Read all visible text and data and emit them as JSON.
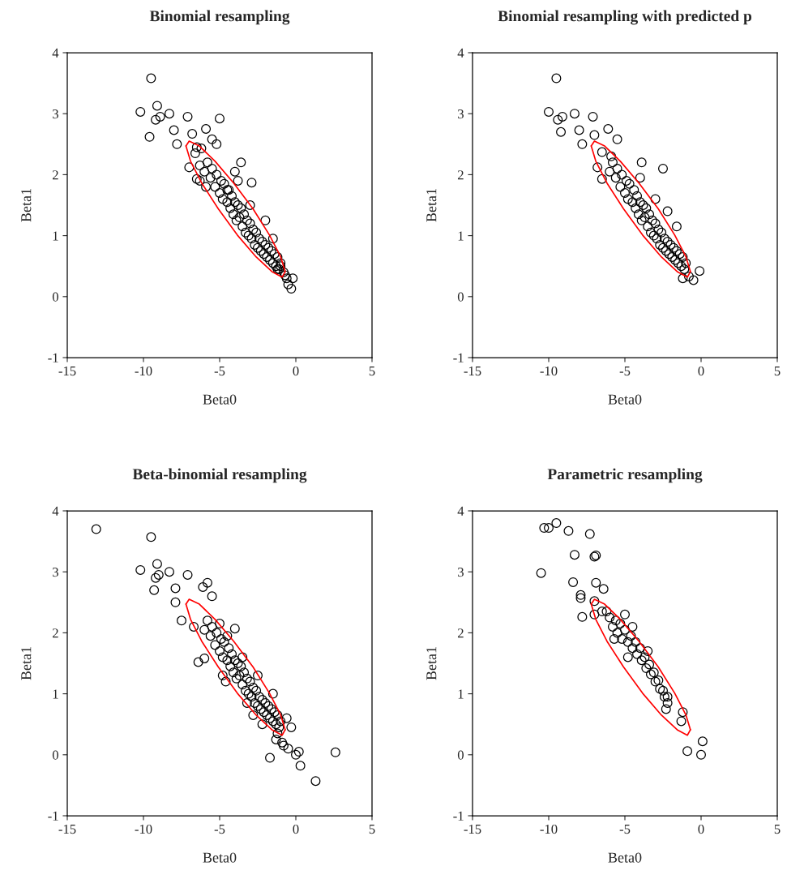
{
  "chart_data": [
    {
      "type": "scatter",
      "title": "Binomial resampling",
      "xlabel": "Beta0",
      "ylabel": "Beta1",
      "xlim": [
        -15,
        5
      ],
      "xticks": [
        -15,
        -10,
        -5,
        0,
        5
      ],
      "ylim": [
        -1,
        4
      ],
      "yticks": [
        -1,
        0,
        1,
        2,
        3,
        4
      ],
      "marker": "circle",
      "series": [
        {
          "color": "#000000",
          "x": [
            -9.5,
            -10.2,
            -9.1,
            -9.6,
            -9.2,
            -8.9,
            -8.3,
            -7.1,
            -5.0,
            -6.8,
            -7.8,
            -5.9,
            -8.0,
            -6.2,
            -7.0,
            -6.5,
            -5.5,
            -5.2,
            -3.6,
            -2.9,
            -4.5,
            -6.0,
            -5.8,
            -5.6,
            -5.5,
            -5.3,
            -5.2,
            -5.0,
            -4.9,
            -4.8,
            -4.7,
            -4.5,
            -4.4,
            -4.3,
            -4.2,
            -4.1,
            -4.0,
            -3.9,
            -3.8,
            -3.7,
            -3.6,
            -3.5,
            -3.4,
            -3.3,
            -3.2,
            -3.1,
            -3.0,
            -2.9,
            -2.8,
            -2.7,
            -2.6,
            -2.5,
            -2.4,
            -2.3,
            -2.2,
            -2.1,
            -2.0,
            -1.9,
            -1.8,
            -1.7,
            -1.6,
            -1.5,
            -1.4,
            -1.3,
            -1.2,
            -1.1,
            -1.0,
            -0.8,
            -0.6,
            -0.5,
            -0.3,
            -0.2,
            -6.6,
            -6.3,
            -5.9,
            -4.0,
            -3.0,
            -2.0,
            -1.5,
            -3.8,
            -6.5,
            -6.3,
            -0.7,
            -1.0,
            -1.2
          ],
          "values": [
            3.58,
            3.03,
            3.13,
            2.62,
            2.9,
            2.95,
            3.0,
            2.95,
            2.92,
            2.67,
            2.5,
            2.75,
            2.73,
            2.43,
            2.12,
            1.93,
            2.58,
            2.5,
            2.2,
            1.87,
            1.75,
            2.05,
            2.2,
            1.95,
            2.1,
            1.8,
            2.0,
            1.7,
            1.9,
            1.6,
            1.85,
            1.55,
            1.75,
            1.45,
            1.65,
            1.35,
            1.55,
            1.25,
            1.5,
            1.3,
            1.45,
            1.15,
            1.35,
            1.05,
            1.25,
            1.0,
            1.2,
            0.95,
            1.1,
            0.85,
            1.05,
            0.8,
            0.95,
            0.75,
            0.9,
            0.7,
            0.85,
            0.65,
            0.8,
            0.6,
            0.75,
            0.55,
            0.7,
            0.5,
            0.65,
            0.45,
            0.55,
            0.4,
            0.3,
            0.2,
            0.13,
            0.3,
            2.35,
            2.15,
            1.8,
            2.05,
            1.5,
            1.25,
            0.95,
            1.9,
            2.45,
            1.9,
            0.35,
            0.5,
            0.45
          ]
        },
        {
          "type": "line",
          "marker": "none",
          "color": "#ff0000",
          "x": [
            -7.21,
            -7.0,
            -6.33,
            -5.3,
            -4.07,
            -2.81,
            -1.73,
            -0.99,
            -0.7
          ],
          "values": [
            2.47,
            2.55,
            2.47,
            2.22,
            1.86,
            1.44,
            1.01,
            0.65,
            0.41
          ]
        },
        {
          "type": "line",
          "marker": "none",
          "color": "#ff0000",
          "x": [
            -7.21,
            -6.91,
            -6.17,
            -5.09,
            -3.84,
            -2.6,
            -1.57,
            -0.9,
            -0.7
          ],
          "values": [
            2.47,
            2.22,
            1.86,
            1.44,
            1.01,
            0.65,
            0.41,
            0.32,
            0.41
          ]
        }
      ]
    },
    {
      "type": "scatter",
      "title": "Binomial resampling with predicted p",
      "xlabel": "Beta0",
      "ylabel": "Beta1",
      "xlim": [
        -15,
        5
      ],
      "xticks": [
        -15,
        -10,
        -5,
        0,
        5
      ],
      "ylim": [
        -1,
        4
      ],
      "yticks": [
        -1,
        0,
        1,
        2,
        3,
        4
      ],
      "marker": "circle",
      "series": [
        {
          "color": "#000000",
          "x": [
            -9.5,
            -10.0,
            -9.4,
            -9.1,
            -8.3,
            -7.1,
            -9.2,
            -8.0,
            -7.8,
            -6.1,
            -5.5,
            -7.0,
            -6.5,
            -3.9,
            -2.5,
            -6.8,
            -6.5,
            -0.1,
            -0.5,
            -0.8,
            -1.2,
            -6.0,
            -5.8,
            -5.6,
            -5.5,
            -5.3,
            -5.2,
            -5.0,
            -4.9,
            -4.8,
            -4.7,
            -4.5,
            -4.4,
            -4.3,
            -4.2,
            -4.1,
            -4.0,
            -3.9,
            -3.8,
            -3.7,
            -3.6,
            -3.5,
            -3.4,
            -3.3,
            -3.2,
            -3.1,
            -3.0,
            -2.9,
            -2.8,
            -2.7,
            -2.6,
            -2.5,
            -2.4,
            -2.3,
            -2.2,
            -2.1,
            -2.0,
            -1.9,
            -1.8,
            -1.7,
            -1.6,
            -1.5,
            -1.4,
            -1.3,
            -1.2,
            -1.1,
            -1.0,
            -4.0,
            -3.0,
            -2.2,
            -1.6,
            -5.9
          ],
          "values": [
            3.58,
            3.03,
            2.9,
            2.95,
            3.0,
            2.95,
            2.7,
            2.73,
            2.5,
            2.75,
            2.58,
            2.65,
            2.37,
            2.2,
            2.1,
            2.12,
            1.93,
            0.42,
            0.27,
            0.33,
            0.3,
            2.05,
            2.2,
            1.95,
            2.1,
            1.8,
            2.0,
            1.7,
            1.9,
            1.6,
            1.85,
            1.55,
            1.75,
            1.45,
            1.65,
            1.35,
            1.55,
            1.25,
            1.5,
            1.3,
            1.45,
            1.15,
            1.35,
            1.05,
            1.25,
            1.0,
            1.2,
            0.95,
            1.1,
            0.85,
            1.05,
            0.8,
            0.95,
            0.75,
            0.9,
            0.7,
            0.85,
            0.65,
            0.8,
            0.6,
            0.75,
            0.55,
            0.7,
            0.5,
            0.65,
            0.45,
            0.55,
            1.95,
            1.6,
            1.4,
            1.15,
            2.3
          ]
        },
        {
          "type": "line",
          "marker": "none",
          "color": "#ff0000",
          "x": [
            -7.21,
            -7.0,
            -6.33,
            -5.3,
            -4.07,
            -2.81,
            -1.73,
            -0.99,
            -0.7
          ],
          "values": [
            2.47,
            2.55,
            2.47,
            2.22,
            1.86,
            1.44,
            1.01,
            0.65,
            0.41
          ]
        },
        {
          "type": "line",
          "marker": "none",
          "color": "#ff0000",
          "x": [
            -7.21,
            -6.91,
            -6.17,
            -5.09,
            -3.84,
            -2.6,
            -1.57,
            -0.9,
            -0.7
          ],
          "values": [
            2.47,
            2.22,
            1.86,
            1.44,
            1.01,
            0.65,
            0.41,
            0.32,
            0.41
          ]
        }
      ]
    },
    {
      "type": "scatter",
      "title": "Beta-binomial resampling",
      "xlabel": "Beta0",
      "ylabel": "Beta1",
      "xlim": [
        -15,
        5
      ],
      "xticks": [
        -15,
        -10,
        -5,
        0,
        5
      ],
      "ylim": [
        -1,
        4
      ],
      "yticks": [
        -1,
        0,
        1,
        2,
        3,
        4
      ],
      "marker": "circle",
      "series": [
        {
          "color": "#000000",
          "x": [
            -13.1,
            -9.5,
            -10.2,
            -9.1,
            -9.2,
            -9.0,
            -8.3,
            -7.1,
            -9.3,
            -7.9,
            -7.9,
            -5.8,
            -6.1,
            -7.5,
            -5.5,
            -6.7,
            -6.4,
            -6.0,
            -4.0,
            1.3,
            2.6,
            0.3,
            -1.7,
            0.0,
            -0.5,
            0.2,
            -0.8,
            -1.3,
            -6.0,
            -5.8,
            -5.6,
            -5.5,
            -5.3,
            -5.2,
            -5.0,
            -4.9,
            -4.8,
            -4.7,
            -4.5,
            -4.4,
            -4.3,
            -4.2,
            -4.1,
            -4.0,
            -3.9,
            -3.8,
            -3.7,
            -3.6,
            -3.5,
            -3.4,
            -3.3,
            -3.2,
            -3.1,
            -3.0,
            -2.9,
            -2.8,
            -2.7,
            -2.6,
            -2.5,
            -2.4,
            -2.3,
            -2.2,
            -2.1,
            -2.0,
            -1.9,
            -1.8,
            -1.7,
            -1.6,
            -1.5,
            -1.4,
            -1.3,
            -1.2,
            -1.1,
            -1.0,
            -5.0,
            -4.5,
            -3.5,
            -2.5,
            -1.5,
            -4.8,
            -3.2,
            -2.2,
            -0.9,
            -0.3,
            -4.6,
            -2.8,
            -1.2,
            -0.6
          ],
          "values": [
            3.7,
            3.57,
            3.03,
            3.13,
            2.9,
            2.95,
            3.0,
            2.95,
            2.7,
            2.73,
            2.5,
            2.82,
            2.75,
            2.2,
            2.6,
            2.1,
            1.52,
            1.58,
            2.07,
            -0.43,
            0.04,
            -0.18,
            -0.05,
            0.0,
            0.1,
            0.05,
            0.15,
            0.25,
            2.05,
            2.2,
            1.95,
            2.1,
            1.8,
            2.0,
            1.7,
            1.9,
            1.6,
            1.85,
            1.55,
            1.75,
            1.45,
            1.65,
            1.35,
            1.55,
            1.25,
            1.5,
            1.3,
            1.45,
            1.15,
            1.35,
            1.05,
            1.25,
            1.0,
            1.2,
            0.95,
            1.1,
            0.85,
            1.05,
            0.8,
            0.95,
            0.75,
            0.9,
            0.7,
            0.85,
            0.65,
            0.8,
            0.6,
            0.75,
            0.55,
            0.7,
            0.5,
            0.65,
            0.45,
            0.55,
            2.15,
            1.95,
            1.6,
            1.3,
            1.0,
            1.3,
            0.85,
            0.5,
            0.2,
            0.45,
            1.2,
            0.65,
            0.35,
            0.6
          ]
        },
        {
          "type": "line",
          "marker": "none",
          "color": "#ff0000",
          "x": [
            -7.21,
            -7.0,
            -6.33,
            -5.3,
            -4.07,
            -2.81,
            -1.73,
            -0.99,
            -0.7
          ],
          "values": [
            2.47,
            2.55,
            2.47,
            2.22,
            1.86,
            1.44,
            1.01,
            0.65,
            0.41
          ]
        },
        {
          "type": "line",
          "marker": "none",
          "color": "#ff0000",
          "x": [
            -7.21,
            -6.91,
            -6.17,
            -5.09,
            -3.84,
            -2.6,
            -1.57,
            -0.9,
            -0.7
          ],
          "values": [
            2.47,
            2.22,
            1.86,
            1.44,
            1.01,
            0.65,
            0.41,
            0.32,
            0.41
          ]
        }
      ]
    },
    {
      "type": "scatter",
      "title": "Parametric resampling",
      "xlabel": "Beta0",
      "ylabel": "Beta1",
      "xlim": [
        -15,
        5
      ],
      "xticks": [
        -15,
        -10,
        -5,
        0,
        5
      ],
      "ylim": [
        -1,
        4
      ],
      "yticks": [
        -1,
        0,
        1,
        2,
        3,
        4
      ],
      "marker": "circle",
      "series": [
        {
          "color": "#000000",
          "x": [
            -10.3,
            -10.0,
            -9.5,
            -8.7,
            -7.3,
            -8.3,
            -6.9,
            -7.0,
            -10.5,
            -8.4,
            -7.9,
            -7.9,
            -7.8,
            -6.9,
            -6.4,
            -7.0,
            -6.5,
            -6.2,
            -7.0,
            -1.3,
            -1.2,
            -0.9,
            0.1,
            0.0,
            -2.2,
            -2.3,
            -6.0,
            -5.8,
            -5.6,
            -5.5,
            -5.3,
            -5.2,
            -5.0,
            -4.8,
            -4.6,
            -4.5,
            -4.3,
            -4.2,
            -4.0,
            -3.9,
            -3.7,
            -3.6,
            -3.4,
            -3.3,
            -3.1,
            -3.0,
            -2.8,
            -2.7,
            -2.5,
            -2.4,
            -2.2,
            -5.0,
            -4.5,
            -3.5,
            -5.7,
            -4.8
          ],
          "values": [
            3.72,
            3.72,
            3.8,
            3.67,
            3.62,
            3.28,
            3.27,
            3.25,
            2.98,
            2.83,
            2.62,
            2.57,
            2.26,
            2.82,
            2.72,
            2.52,
            2.35,
            2.35,
            2.3,
            0.55,
            0.7,
            0.06,
            0.22,
            0.0,
            0.85,
            0.75,
            2.25,
            2.1,
            2.2,
            2.0,
            2.15,
            1.9,
            2.05,
            1.85,
            1.95,
            1.75,
            1.85,
            1.65,
            1.75,
            1.55,
            1.6,
            1.42,
            1.48,
            1.32,
            1.35,
            1.2,
            1.22,
            1.08,
            1.05,
            0.95,
            0.95,
            2.3,
            2.1,
            1.7,
            1.9,
            1.6
          ]
        },
        {
          "type": "line",
          "marker": "none",
          "color": "#ff0000",
          "x": [
            -7.21,
            -7.0,
            -6.33,
            -5.3,
            -4.07,
            -2.81,
            -1.73,
            -0.99,
            -0.7
          ],
          "values": [
            2.47,
            2.55,
            2.47,
            2.22,
            1.86,
            1.44,
            1.01,
            0.65,
            0.41
          ]
        },
        {
          "type": "line",
          "marker": "none",
          "color": "#ff0000",
          "x": [
            -7.21,
            -6.91,
            -6.17,
            -5.09,
            -3.84,
            -2.6,
            -1.57,
            -0.9,
            -0.7
          ],
          "values": [
            2.47,
            2.22,
            1.86,
            1.44,
            1.01,
            0.65,
            0.41,
            0.32,
            0.41
          ]
        }
      ]
    }
  ]
}
